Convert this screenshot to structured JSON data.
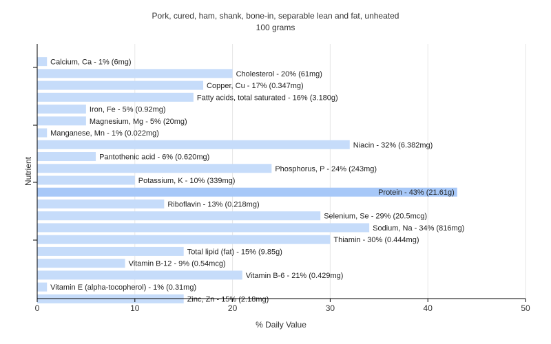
{
  "chart_data": {
    "type": "bar",
    "orientation": "horizontal",
    "title": "Pork, cured, ham, shank, bone-in, separable lean and fat, unheated",
    "subtitle": "100 grams",
    "xlabel": "% Daily Value",
    "ylabel": "Nutrient",
    "xlim": [
      0,
      50
    ],
    "xticks": [
      0,
      10,
      20,
      30,
      40,
      50
    ],
    "grid": true,
    "bar_color": "#c6dcfa",
    "highlight_color": "#a7c8f8",
    "categories": [
      "Calcium, Ca",
      "Cholesterol",
      "Copper, Cu",
      "Fatty acids, total saturated",
      "Iron, Fe",
      "Magnesium, Mg",
      "Manganese, Mn",
      "Niacin",
      "Pantothenic acid",
      "Phosphorus, P",
      "Potassium, K",
      "Protein",
      "Riboflavin",
      "Selenium, Se",
      "Sodium, Na",
      "Thiamin",
      "Total lipid (fat)",
      "Vitamin B-12",
      "Vitamin B-6",
      "Vitamin E (alpha-tocopherol)",
      "Zinc, Zn"
    ],
    "values": [
      1,
      20,
      17,
      16,
      5,
      5,
      1,
      32,
      6,
      24,
      10,
      43,
      13,
      29,
      34,
      30,
      15,
      9,
      21,
      1,
      15
    ],
    "labels": [
      "Calcium, Ca - 1% (6mg)",
      "Cholesterol - 20% (61mg)",
      "Copper, Cu - 17% (0.347mg)",
      "Fatty acids, total saturated - 16% (3.180g)",
      "Iron, Fe - 5% (0.92mg)",
      "Magnesium, Mg - 5% (20mg)",
      "Manganese, Mn - 1% (0.022mg)",
      "Niacin - 32% (6.382mg)",
      "Pantothenic acid - 6% (0.620mg)",
      "Phosphorus, P - 24% (243mg)",
      "Potassium, K - 10% (339mg)",
      "Protein - 43% (21.61g)",
      "Riboflavin - 13% (0.218mg)",
      "Selenium, Se - 29% (20.5mcg)",
      "Sodium, Na - 34% (816mg)",
      "Thiamin - 30% (0.444mg)",
      "Total lipid (fat) - 15% (9.85g)",
      "Vitamin B-12 - 9% (0.54mcg)",
      "Vitamin B-6 - 21% (0.429mg)",
      "Vitamin E (alpha-tocopherol) - 1% (0.31mg)",
      "Zinc, Zn - 15% (2.18mg)"
    ],
    "label_inside": [
      false,
      false,
      false,
      false,
      false,
      false,
      false,
      false,
      false,
      false,
      false,
      true,
      false,
      false,
      false,
      false,
      false,
      false,
      false,
      false,
      false
    ]
  }
}
